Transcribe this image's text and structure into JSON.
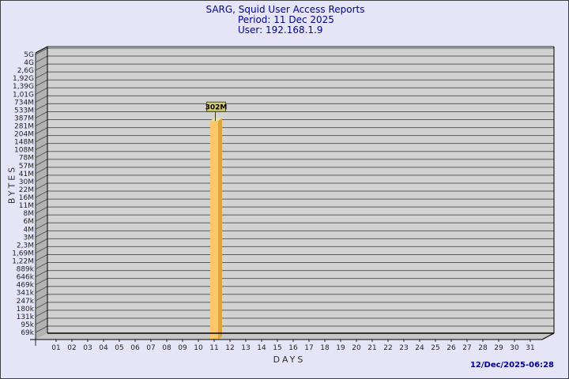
{
  "header": {
    "title": "SARG, Squid User Access Reports",
    "period": "Period: 11 Dec 2025",
    "user": "User: 192.168.1.9"
  },
  "footer": {
    "timestamp": "12/Dec/2025-06:28"
  },
  "colors": {
    "background": "#e5e5f7",
    "title_text": "#00008b",
    "plot_bg": "#d2d2d2",
    "side_wall": "#b3b3b3",
    "floor": "#c7c7c7",
    "grid": "#5c5c5c",
    "axis_line": "#000000",
    "tick_text": "#1f1f1f",
    "bar_front": "#fcc66b",
    "bar_side": "#dfa43d",
    "bar_top": "#f0dd9f",
    "flag_bg": "#d6ca76",
    "flag_border": "#52520a",
    "flag_text": "#000000"
  },
  "chart_data": {
    "type": "bar",
    "scale": "log",
    "xlabel": "DAYS",
    "ylabel": "BYTES",
    "x_categories": [
      "01",
      "02",
      "03",
      "04",
      "05",
      "06",
      "07",
      "08",
      "09",
      "10",
      "11",
      "12",
      "13",
      "14",
      "15",
      "16",
      "17",
      "18",
      "19",
      "20",
      "21",
      "22",
      "23",
      "24",
      "25",
      "26",
      "27",
      "28",
      "29",
      "30",
      "31"
    ],
    "yticks": [
      "5G",
      "4G",
      "2,6G",
      "1,92G",
      "1,39G",
      "1,01G",
      "734M",
      "533M",
      "387M",
      "281M",
      "204M",
      "148M",
      "108M",
      "78M",
      "57M",
      "41M",
      "30M",
      "22M",
      "16M",
      "11M",
      "8M",
      "6M",
      "4M",
      "3M",
      "2,3M",
      "1,69M",
      "1,22M",
      "889k",
      "646k",
      "469k",
      "341k",
      "247k",
      "180k",
      "131k",
      "95k",
      "69k"
    ],
    "bars": [
      {
        "day": "11",
        "value": 302000000,
        "label": "302M"
      }
    ],
    "legend": null,
    "grid": "horizontal"
  }
}
